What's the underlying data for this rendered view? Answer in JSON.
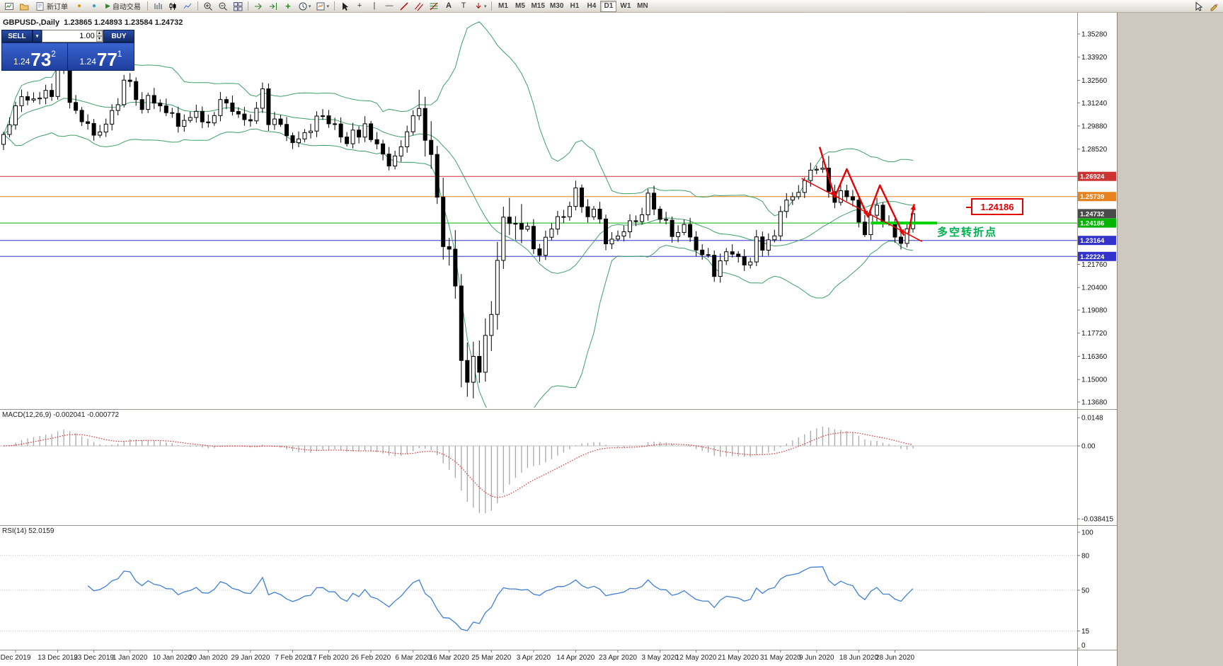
{
  "toolbar": {
    "new_order_label": "新订单",
    "autotrading_label": "自动交易",
    "icons": {
      "caret": "▾",
      "dot": "●",
      "play": "▶",
      "crosshair": "+",
      "text": "A",
      "label": "T",
      "indicators": "+",
      "vline": "|",
      "hline": "—",
      "spin_up": "▴",
      "spin_down": "▾"
    },
    "timeframes": [
      "M1",
      "M5",
      "M15",
      "M30",
      "H1",
      "H4",
      "D1",
      "W1",
      "MN"
    ],
    "active_timeframe": "D1"
  },
  "trade": {
    "sell_label": "SELL",
    "buy_label": "BUY",
    "volume": "1.00",
    "sell_price": {
      "big": "1.24",
      "pips": "73",
      "pt": "2"
    },
    "buy_price": {
      "big": "1.24",
      "pips": "77",
      "pt": "1"
    }
  },
  "chart": {
    "title": "GBPUSD-,Daily  1.23865 1.24893 1.23584 1.24732",
    "macd_label": "MACD(12,26,9) -0.002041 -0.000772",
    "rsi_label": "RSI(14) 52.0159"
  },
  "annotations": {
    "price_label": "1.24186",
    "turning_point_label": "多空转折点"
  },
  "chart_data": {
    "type": "candlestick+indicators",
    "symbol": "GBPUSD-",
    "timeframe": "Daily",
    "first_open": 1.288,
    "closes": [
      1.2938,
      1.2995,
      1.3107,
      1.316,
      1.314,
      1.3147,
      1.3152,
      1.3197,
      1.3161,
      1.3331,
      1.3328,
      1.3126,
      1.308,
      1.3013,
      1.3003,
      1.2934,
      1.2953,
      1.2999,
      1.3079,
      1.3113,
      1.3257,
      1.3249,
      1.3143,
      1.3085,
      1.3167,
      1.3122,
      1.3106,
      1.3066,
      1.3062,
      1.2986,
      1.3021,
      1.3038,
      1.3074,
      1.3012,
      1.3006,
      1.3049,
      1.3143,
      1.3123,
      1.3073,
      1.3058,
      1.3025,
      1.3018,
      1.3092,
      1.3206,
      1.2996,
      1.3029,
      1.2997,
      1.2931,
      1.289,
      1.2912,
      1.2949,
      1.2958,
      1.3046,
      1.3048,
      1.3001,
      1.3,
      1.2923,
      1.2884,
      1.2964,
      1.2923,
      1.3001,
      1.2908,
      1.2883,
      1.2823,
      1.2753,
      1.2812,
      1.2866,
      1.2954,
      1.3048,
      1.3091,
      1.2904,
      1.2821,
      1.257,
      1.228,
      1.2265,
      1.2049,
      1.1612,
      1.1484,
      1.1636,
      1.1543,
      1.1759,
      1.1882,
      1.2199,
      1.2453,
      1.2416,
      1.2416,
      1.2382,
      1.2399,
      1.2267,
      1.2229,
      1.2335,
      1.2383,
      1.2456,
      1.2455,
      1.2516,
      1.2624,
      1.2514,
      1.2455,
      1.25,
      1.2442,
      1.2296,
      1.2324,
      1.2342,
      1.2367,
      1.2432,
      1.2427,
      1.2467,
      1.2594,
      1.25,
      1.244,
      1.2435,
      1.2339,
      1.2363,
      1.241,
      1.2336,
      1.226,
      1.2233,
      1.2229,
      1.2105,
      1.2197,
      1.225,
      1.2236,
      1.2221,
      1.2172,
      1.219,
      1.2337,
      1.2259,
      1.232,
      1.2343,
      1.2486,
      1.2553,
      1.2573,
      1.2598,
      1.2668,
      1.2729,
      1.2734,
      1.2741,
      1.2603,
      1.254,
      1.2608,
      1.2573,
      1.2553,
      1.2424,
      1.235,
      1.2464,
      1.2523,
      1.242,
      1.2419,
      1.2336,
      1.2299,
      1.2385,
      1.24732
    ],
    "spikes": {
      "9": {
        "high": 1.339
      },
      "69": {
        "high": 1.32
      },
      "76": {
        "low": 1.1455
      },
      "77": {
        "low": 1.141
      },
      "78": {
        "low": 1.1412
      },
      "137": {
        "high": 1.2812
      }
    },
    "bollinger": {
      "period": 20,
      "deviation": 2,
      "color": "#3fa06a"
    },
    "y_labels": [
      1.3528,
      1.3392,
      1.3256,
      1.3124,
      1.2988,
      1.2852,
      1.2176,
      1.204,
      1.1908,
      1.1772,
      1.1636,
      1.15,
      1.1368
    ],
    "x_labels": [
      [
        2,
        "Dec 2019"
      ],
      [
        9,
        "13 Dec 2019"
      ],
      [
        15,
        "23 Dec 2019"
      ],
      [
        21,
        "1 Jan 2020"
      ],
      [
        28,
        "10 Jan 2020"
      ],
      [
        34,
        "20 Jan 2020"
      ],
      [
        41,
        "29 Jan 2020"
      ],
      [
        48,
        "7 Feb 2020"
      ],
      [
        54,
        "17 Feb 2020"
      ],
      [
        61,
        "26 Feb 2020"
      ],
      [
        68,
        "6 Mar 2020"
      ],
      [
        74,
        "16 Mar 2020"
      ],
      [
        81,
        "25 Mar 2020"
      ],
      [
        88,
        "3 Apr 2020"
      ],
      [
        95,
        "14 Apr 2020"
      ],
      [
        102,
        "23 Apr 2020"
      ],
      [
        109,
        "3 May 2020"
      ],
      [
        115,
        "12 May 2020"
      ],
      [
        122,
        "21 May 2020"
      ],
      [
        129,
        "31 May 2020"
      ],
      [
        135,
        "9 Jun 2020"
      ],
      [
        142,
        "18 Jun 2020"
      ],
      [
        148,
        "28 Jun 2020"
      ]
    ],
    "price_lines": [
      {
        "price": 1.26924,
        "label": "1.26924",
        "color": "#cc3333"
      },
      {
        "price": 1.25739,
        "label": "1.25739",
        "color": "#e8821e"
      },
      {
        "price": 1.24186,
        "label": "1.24186",
        "color": "#00b400"
      },
      {
        "price": 1.23164,
        "label": "1.23164",
        "color": "#3333cc"
      },
      {
        "price": 1.22224,
        "label": "1.22224",
        "color": "#3333cc"
      }
    ],
    "current_price": {
      "price": 1.24732,
      "label": "1.24732",
      "color": "#4a4a4a"
    },
    "macd": {
      "fast": 12,
      "slow": 26,
      "signal": 9,
      "hist_color": "#a8a8a8",
      "signal_color": "#e03030",
      "scale": [
        [
          0.0148,
          "0.0148"
        ],
        [
          0,
          "0.00"
        ],
        [
          -0.038415,
          "-0.038415"
        ]
      ]
    },
    "rsi": {
      "period": 14,
      "color": "#3f7fd6",
      "levels": [
        80,
        50,
        15
      ],
      "scale": [
        [
          100,
          "100"
        ],
        [
          80,
          "80"
        ],
        [
          50,
          "50"
        ],
        [
          15,
          "15"
        ],
        [
          0,
          "0"
        ]
      ]
    },
    "drawings": {
      "color": "#e60000",
      "zigzag": [
        [
          135.5,
          1.2865
        ],
        [
          138,
          1.257
        ],
        [
          140,
          1.2735
        ],
        [
          143.5,
          1.2455
        ],
        [
          145.5,
          1.264
        ],
        [
          149.5,
          1.2345
        ]
      ],
      "arrow_points": [
        1,
        3,
        5
      ],
      "trend_line": [
        [
          132.5,
          1.268
        ],
        [
          152.5,
          1.231
        ]
      ],
      "up_arrow": [
        [
          150.2,
          1.235
        ],
        [
          151.2,
          1.253
        ]
      ],
      "support_segment": {
        "from": 144,
        "to": 155,
        "price": 1.24186,
        "color": "#00d400",
        "width": 4
      }
    }
  }
}
